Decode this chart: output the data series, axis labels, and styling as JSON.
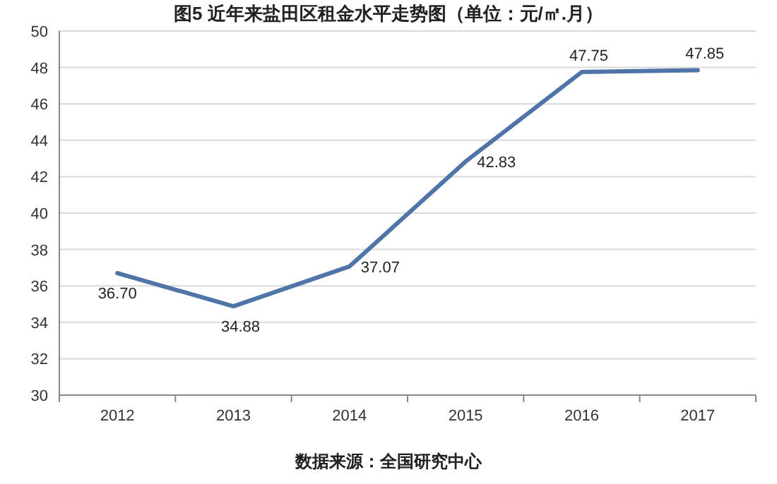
{
  "chart_data": {
    "type": "line",
    "title": "图5  近年来盐田区租金水平走势图（单位：元/㎡.月）",
    "categories": [
      "2012",
      "2013",
      "2014",
      "2015",
      "2016",
      "2017"
    ],
    "series": [
      {
        "color": "#4f74a8",
        "values": [
          36.7,
          34.88,
          37.07,
          42.83,
          47.75,
          47.85
        ],
        "value_labels": [
          "36.70",
          "34.88",
          "37.07",
          "42.83",
          "47.75",
          "47.85"
        ]
      }
    ],
    "ylim": [
      30,
      50
    ],
    "yticks": [
      30,
      32,
      34,
      36,
      38,
      40,
      42,
      44,
      46,
      48,
      50
    ],
    "grid": "y",
    "marker": "none",
    "line_style": "solid",
    "annotations": [
      "数据来源：全国研究中心"
    ]
  }
}
